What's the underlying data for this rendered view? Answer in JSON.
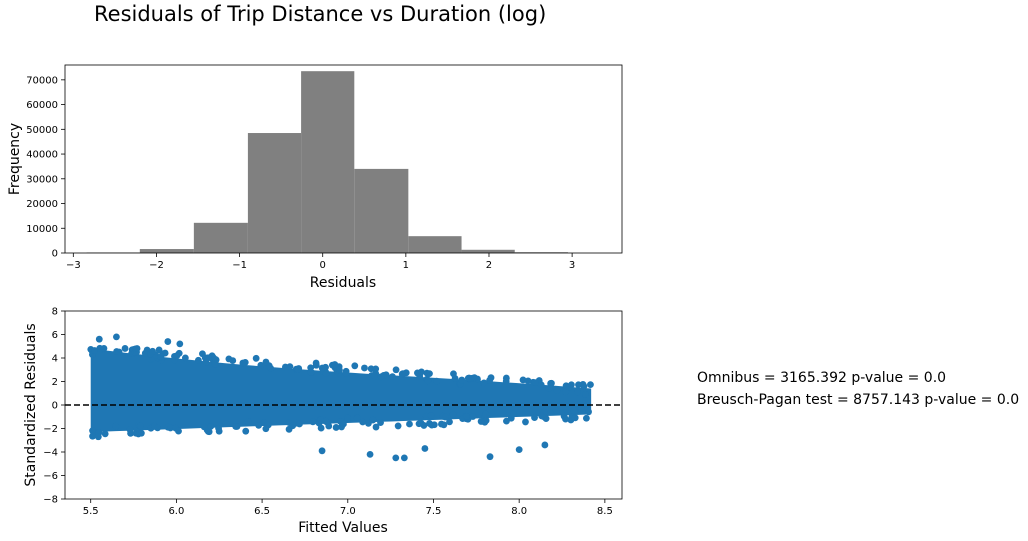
{
  "figure": {
    "title": "Residuals of Trip Distance vs Duration (log)",
    "stats": [
      "Omnibus = 3165.392 p-value = 0.0",
      "Breusch-Pagan test = 8757.143 p-value = 0.0"
    ]
  },
  "colors": {
    "histogram_bar": "#808080",
    "scatter_point": "#1f77b4",
    "reference_line": "#000000"
  },
  "chart_data": [
    {
      "type": "bar",
      "subtype": "histogram",
      "title": "",
      "xlabel": "Residuals",
      "ylabel": "Frequency",
      "xlim": [
        -3.1,
        3.6
      ],
      "ylim": [
        0,
        76000
      ],
      "xticks": [
        -3,
        -2,
        -1,
        0,
        1,
        2,
        3
      ],
      "yticks": [
        0,
        10000,
        20000,
        30000,
        40000,
        50000,
        60000,
        70000
      ],
      "bin_edges": [
        -2.84,
        -2.2,
        -1.55,
        -0.9,
        -0.26,
        0.38,
        1.03,
        1.67,
        2.31,
        2.95,
        3.6
      ],
      "values": [
        200,
        1600,
        12200,
        48500,
        73500,
        34000,
        6800,
        1300,
        300,
        0
      ],
      "grid": false,
      "legend": "none"
    },
    {
      "type": "scatter",
      "title": "",
      "xlabel": "Fitted Values",
      "ylabel": "Standardized Residuals",
      "xlim": [
        5.35,
        8.6
      ],
      "ylim": [
        -8,
        8
      ],
      "xticks": [
        5.5,
        6.0,
        6.5,
        7.0,
        7.5,
        8.0,
        8.5
      ],
      "yticks": [
        -8,
        -6,
        -4,
        -2,
        0,
        2,
        4,
        6,
        8
      ],
      "x_range": [
        5.5,
        8.42
      ],
      "residual_band": {
        "at_x_5_5": [
          -2.3,
          4.8
        ],
        "at_x_8_42": [
          -0.8,
          1.4
        ]
      },
      "reference_line": {
        "y": 0,
        "style": "dashed"
      },
      "outliers": [
        [
          5.55,
          5.6
        ],
        [
          5.65,
          5.8
        ],
        [
          5.95,
          5.4
        ],
        [
          6.02,
          5.2
        ],
        [
          7.13,
          -4.2
        ],
        [
          7.28,
          -4.5
        ],
        [
          7.33,
          -4.5
        ],
        [
          7.83,
          -4.4
        ],
        [
          8.0,
          -3.8
        ],
        [
          8.15,
          -3.4
        ],
        [
          7.45,
          -3.7
        ],
        [
          6.85,
          -3.9
        ]
      ],
      "grid": false,
      "legend": "none"
    }
  ]
}
